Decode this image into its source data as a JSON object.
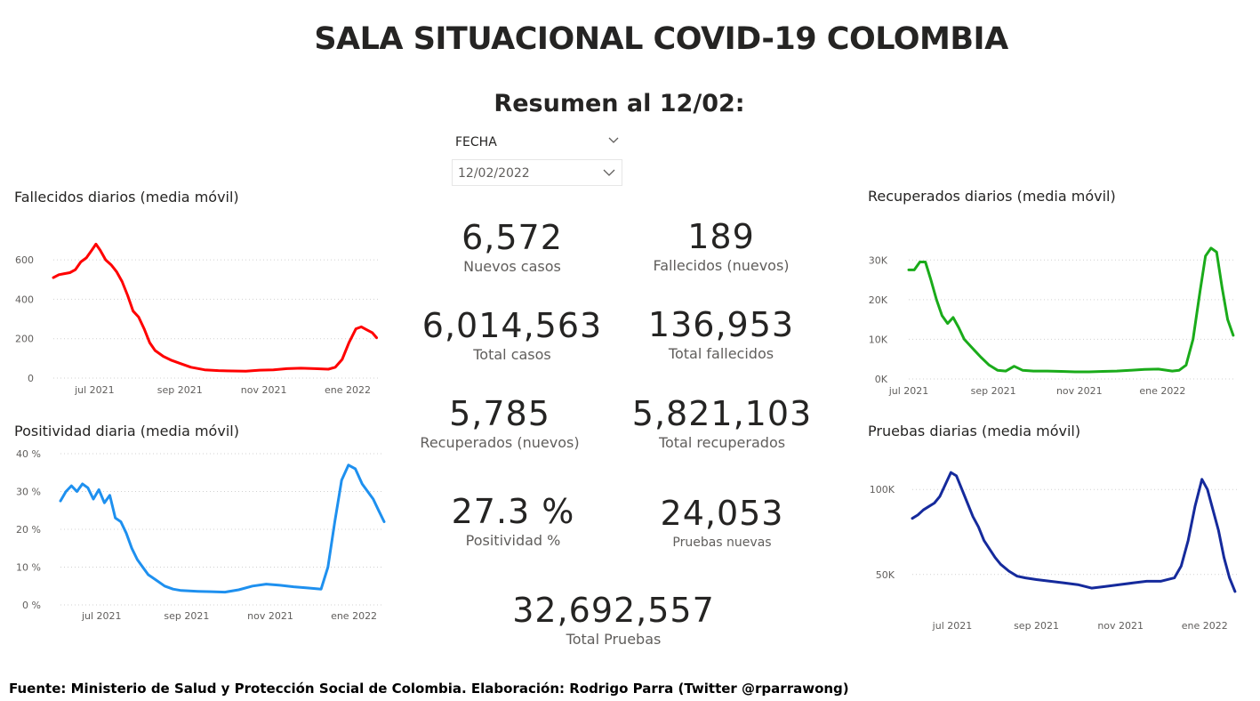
{
  "title": "SALA SITUACIONAL COVID-19 COLOMBIA",
  "subtitle": "Resumen al 12/02:",
  "slicer": {
    "label": "FECHA",
    "value": "12/02/2022"
  },
  "kpis": {
    "nuevos_casos": {
      "value": "6,572",
      "label": "Nuevos casos"
    },
    "fallecidos_nuevos": {
      "value": "189",
      "label": "Fallecidos (nuevos)"
    },
    "total_casos": {
      "value": "6,014,563",
      "label": "Total casos"
    },
    "total_fallecidos": {
      "value": "136,953",
      "label": "Total fallecidos"
    },
    "recuperados_nuevos": {
      "value": "5,785",
      "label": "Recuperados (nuevos)"
    },
    "total_recuperados": {
      "value": "5,821,103",
      "label": "Total recuperados"
    },
    "positividad": {
      "value": "27.3 %",
      "label": "Positividad %"
    },
    "pruebas_nuevas": {
      "value": "24,053",
      "label": "Pruebas nuevas"
    },
    "total_pruebas": {
      "value": "32,692,557",
      "label": "Total Pruebas"
    }
  },
  "footer": "Fuente: Ministerio de Salud y Protección Social de Colombia. Elaboración: Rodrigo Parra (Twitter @rparrawong)",
  "chart_data": [
    {
      "id": "fallecidos",
      "type": "line",
      "title": "Fallecidos diarios (media móvil)",
      "color": "#ff0000",
      "ylim": [
        0,
        700
      ],
      "yticks": [
        0,
        200,
        400,
        600
      ],
      "ytick_labels": [
        "0",
        "200",
        "400",
        "600"
      ],
      "xlim": [
        0,
        236
      ],
      "xticks": [
        30,
        92,
        153,
        214
      ],
      "xtick_labels": [
        "jul 2021",
        "sep 2021",
        "nov 2021",
        "ene 2022"
      ],
      "grid": true,
      "x": [
        0,
        4,
        8,
        12,
        16,
        20,
        24,
        28,
        31,
        34,
        38,
        42,
        46,
        50,
        54,
        58,
        62,
        66,
        70,
        74,
        80,
        86,
        92,
        100,
        110,
        120,
        130,
        140,
        150,
        160,
        170,
        180,
        190,
        200,
        205,
        210,
        215,
        220,
        224,
        228,
        232,
        235
      ],
      "y": [
        510,
        525,
        530,
        535,
        550,
        590,
        610,
        650,
        680,
        650,
        600,
        575,
        540,
        490,
        420,
        340,
        310,
        250,
        180,
        140,
        110,
        90,
        75,
        55,
        42,
        38,
        36,
        35,
        40,
        42,
        48,
        50,
        48,
        45,
        55,
        95,
        180,
        250,
        260,
        245,
        230,
        205
      ]
    },
    {
      "id": "positividad",
      "type": "line",
      "title": "Positividad diaria (media móvil)",
      "color": "#1e90ef",
      "ylim": [
        0,
        40
      ],
      "yticks": [
        0,
        10,
        20,
        30,
        40
      ],
      "ytick_labels": [
        "0 %",
        "10 %",
        "20 %",
        "30 %",
        "40 %"
      ],
      "xlim": [
        0,
        236
      ],
      "xticks": [
        30,
        92,
        153,
        214
      ],
      "xtick_labels": [
        "jul 2021",
        "sep 2021",
        "nov 2021",
        "ene 2022"
      ],
      "grid": true,
      "x": [
        0,
        4,
        8,
        12,
        16,
        20,
        24,
        28,
        32,
        36,
        40,
        44,
        48,
        52,
        56,
        60,
        64,
        70,
        76,
        82,
        88,
        94,
        100,
        110,
        120,
        130,
        140,
        150,
        160,
        170,
        180,
        190,
        195,
        200,
        205,
        210,
        215,
        220,
        224,
        228,
        232,
        236
      ],
      "y": [
        27.5,
        30,
        31.5,
        30,
        32,
        31,
        28,
        30.5,
        27,
        29,
        23,
        22,
        19,
        15,
        12,
        10,
        8,
        6.5,
        5,
        4.2,
        3.8,
        3.7,
        3.6,
        3.5,
        3.4,
        4,
        5,
        5.5,
        5.2,
        4.8,
        4.5,
        4.2,
        10,
        22,
        33,
        37,
        36,
        32,
        30,
        28,
        25,
        22
      ]
    },
    {
      "id": "recuperados",
      "type": "line",
      "title": "Recuperados diarios (media móvil)",
      "color": "#1aab1a",
      "ylim": [
        0,
        35000
      ],
      "yticks": [
        0,
        10000,
        20000,
        30000
      ],
      "ytick_labels": [
        "0K",
        "10K",
        "20K",
        "30K"
      ],
      "xlim": [
        0,
        236
      ],
      "xticks": [
        0,
        61,
        123,
        183
      ],
      "xtick_labels": [
        "jul 2021",
        "sep 2021",
        "nov 2021",
        "ene 2022"
      ],
      "grid": true,
      "x": [
        0,
        4,
        8,
        12,
        16,
        20,
        24,
        28,
        32,
        36,
        40,
        44,
        48,
        52,
        58,
        64,
        70,
        76,
        82,
        90,
        100,
        110,
        120,
        130,
        140,
        150,
        160,
        170,
        180,
        190,
        195,
        200,
        205,
        210,
        214,
        218,
        222,
        226,
        230,
        234
      ],
      "y": [
        27500,
        27500,
        29500,
        29500,
        25000,
        20000,
        16000,
        14000,
        15500,
        13000,
        10000,
        8500,
        7000,
        5500,
        3500,
        2200,
        2000,
        3200,
        2200,
        2000,
        2000,
        1900,
        1800,
        1800,
        1900,
        2000,
        2200,
        2400,
        2500,
        2000,
        2200,
        3500,
        10000,
        22000,
        31000,
        33000,
        32000,
        23000,
        15000,
        11000
      ]
    },
    {
      "id": "pruebas",
      "type": "line",
      "title": "Pruebas diarias (media móvil)",
      "color": "#152a9c",
      "ylim": [
        30000,
        120000
      ],
      "yticks": [
        50000,
        100000
      ],
      "ytick_labels": [
        "50K",
        "100K"
      ],
      "xlim": [
        0,
        236
      ],
      "xticks": [
        29,
        90,
        151,
        212
      ],
      "xtick_labels": [
        "jul 2021",
        "sep 2021",
        "nov 2021",
        "ene 2022"
      ],
      "grid": true,
      "x": [
        0,
        4,
        8,
        12,
        16,
        20,
        24,
        28,
        32,
        36,
        40,
        44,
        48,
        52,
        56,
        60,
        64,
        70,
        76,
        82,
        90,
        100,
        110,
        120,
        130,
        140,
        150,
        160,
        170,
        180,
        190,
        195,
        200,
        205,
        210,
        214,
        218,
        222,
        226,
        230,
        234
      ],
      "y": [
        83000,
        85000,
        88000,
        90000,
        92000,
        96000,
        103000,
        110000,
        108000,
        100000,
        92000,
        84000,
        78000,
        70000,
        65000,
        60000,
        56000,
        52000,
        49000,
        48000,
        47000,
        46000,
        45000,
        44000,
        42000,
        43000,
        44000,
        45000,
        46000,
        46000,
        48000,
        55000,
        70000,
        90000,
        106000,
        100000,
        88000,
        76000,
        60000,
        48000,
        40000
      ]
    }
  ]
}
